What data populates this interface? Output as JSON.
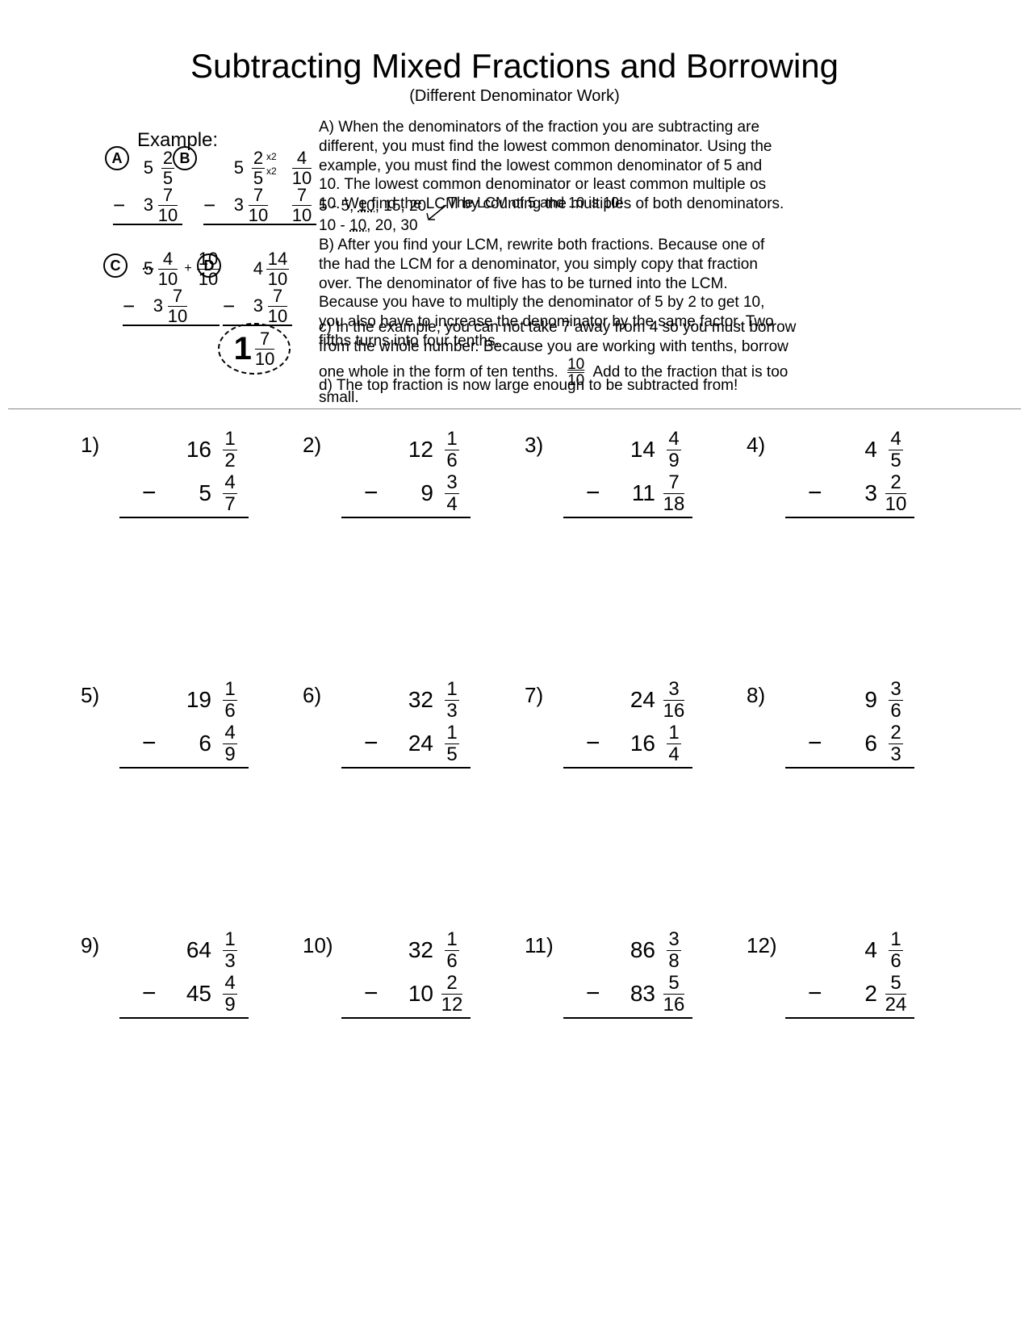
{
  "title": "Subtracting Mixed Fractions and Borrowing",
  "subtitle": "(Different Denominator Work)",
  "example_label": "Example:",
  "steps": {
    "A": {
      "top": {
        "w": "5",
        "n": "2",
        "d": "5"
      },
      "bot": {
        "w": "3",
        "n": "7",
        "d": "10"
      }
    },
    "B": {
      "top_l": {
        "w": "5",
        "n": "2",
        "d": "5"
      },
      "mul": "x2",
      "top_r": {
        "n": "4",
        "d": "10"
      },
      "bot_l": {
        "w": "3",
        "n": "7",
        "d": "10"
      },
      "bot_r": {
        "n": "7",
        "d": "10"
      }
    },
    "C": {
      "top_l": {
        "w": "5",
        "n": "4",
        "d": "10"
      },
      "plus": "+",
      "top_r": {
        "n": "10",
        "d": "10"
      },
      "bot": {
        "w": "3",
        "n": "7",
        "d": "10"
      }
    },
    "D": {
      "top": {
        "w": "4",
        "n": "14",
        "d": "10"
      },
      "bot": {
        "w": "3",
        "n": "7",
        "d": "10"
      }
    }
  },
  "answer": {
    "w": "1",
    "n": "7",
    "d": "10"
  },
  "paragraphs": {
    "A": "A)  When the denominators of the fraction you are subtracting are different, you must find the lowest common denominator.  Using the example, you must find the lowest common denominator of 5 and 10.  The lowest common denominator or least common multiple os 10.  We find the LCM by counting the multiples of both denominators.",
    "LCM1_a": "5 - 5, ",
    "LCM1_u": "10",
    "LCM1_b": ", 15, 20",
    "LCM2_a": "10 - ",
    "LCM2_u": "10",
    "LCM2_b": ", 20, 30",
    "LCM_note": "The LCM of 5 and 10 is 10!",
    "B": "B)  After you find your LCM, rewrite both fractions.  Because one of the had the LCM for a denominator, you simply copy that fraction over.  The denominator of five has to be turned into the LCM.  Because you have to multiply the denominator of 5 by 2 to get 10, you also have to increase the denominator by the same factor.  Two fifths turns into four tenths.",
    "C_a": "c) In the example, you can not take 7 away from 4 so you must borrow from the whole number.  Because you are working with tenths, borrow one whole in the form of ten tenths.",
    "C_frac": {
      "n": "10",
      "d": "10"
    },
    "C_b": "Add to the fraction that is too small.",
    "D": "d) The top fraction is now large enough to be subtracted from!"
  },
  "problems": [
    {
      "n": "1)",
      "a": {
        "w": "16",
        "n": "1",
        "d": "2"
      },
      "b": {
        "w": "5",
        "n": "4",
        "d": "7"
      }
    },
    {
      "n": "2)",
      "a": {
        "w": "12",
        "n": "1",
        "d": "6"
      },
      "b": {
        "w": "9",
        "n": "3",
        "d": "4"
      }
    },
    {
      "n": "3)",
      "a": {
        "w": "14",
        "n": "4",
        "d": "9"
      },
      "b": {
        "w": "11",
        "n": "7",
        "d": "18"
      }
    },
    {
      "n": "4)",
      "a": {
        "w": "4",
        "n": "4",
        "d": "5"
      },
      "b": {
        "w": "3",
        "n": "2",
        "d": "10"
      }
    },
    {
      "n": "5)",
      "a": {
        "w": "19",
        "n": "1",
        "d": "6"
      },
      "b": {
        "w": "6",
        "n": "4",
        "d": "9"
      }
    },
    {
      "n": "6)",
      "a": {
        "w": "32",
        "n": "1",
        "d": "3"
      },
      "b": {
        "w": "24",
        "n": "1",
        "d": "5"
      }
    },
    {
      "n": "7)",
      "a": {
        "w": "24",
        "n": "3",
        "d": "16"
      },
      "b": {
        "w": "16",
        "n": "1",
        "d": "4"
      }
    },
    {
      "n": "8)",
      "a": {
        "w": "9",
        "n": "3",
        "d": "6"
      },
      "b": {
        "w": "6",
        "n": "2",
        "d": "3"
      }
    },
    {
      "n": "9)",
      "a": {
        "w": "64",
        "n": "1",
        "d": "3"
      },
      "b": {
        "w": "45",
        "n": "4",
        "d": "9"
      }
    },
    {
      "n": "10)",
      "a": {
        "w": "32",
        "n": "1",
        "d": "6"
      },
      "b": {
        "w": "10",
        "n": "2",
        "d": "12"
      }
    },
    {
      "n": "11)",
      "a": {
        "w": "86",
        "n": "3",
        "d": "8"
      },
      "b": {
        "w": "83",
        "n": "5",
        "d": "16"
      }
    },
    {
      "n": "12)",
      "a": {
        "w": "4",
        "n": "1",
        "d": "6"
      },
      "b": {
        "w": "2",
        "n": "5",
        "d": "24"
      }
    }
  ]
}
